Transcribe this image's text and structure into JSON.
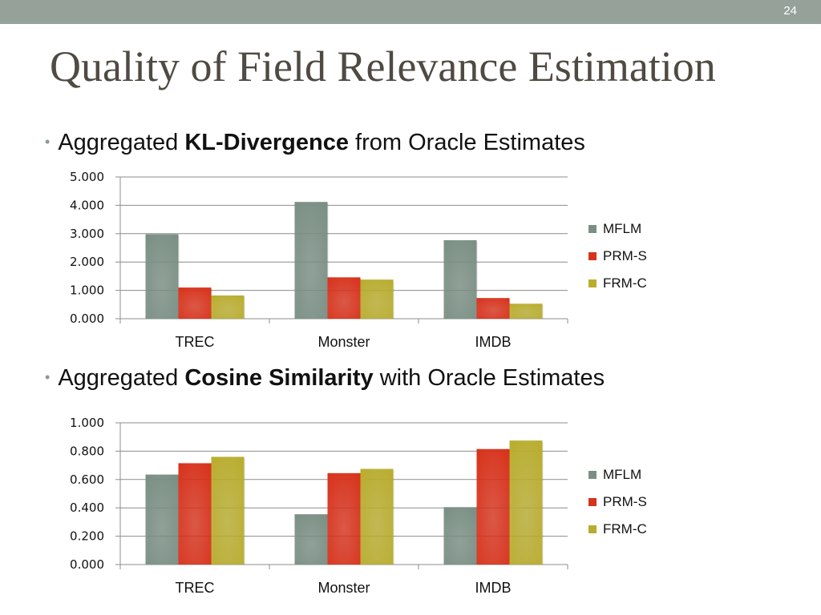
{
  "slide": {
    "number": "24",
    "title": "Quality of Field Relevance Estimation"
  },
  "bullets": [
    {
      "prefix": "Aggregated ",
      "bold": "KL-Divergence",
      "suffix": " from Oracle Estimates"
    },
    {
      "prefix": "Aggregated ",
      "bold": "Cosine Similarity",
      "suffix": " with Oracle Estimates"
    }
  ],
  "colors": {
    "MFLM": "#7a8f84",
    "PRM-S": "#d8321b",
    "FRM-C": "#b9ad2e",
    "topbar": "#95a199",
    "title": "#4f4a42"
  },
  "chart_data": [
    {
      "type": "bar",
      "categories": [
        "TREC",
        "Monster",
        "IMDB"
      ],
      "series": [
        {
          "name": "MFLM",
          "values": [
            2.98,
            4.12,
            2.77
          ]
        },
        {
          "name": "PRM-S",
          "values": [
            1.1,
            1.46,
            0.73
          ]
        },
        {
          "name": "FRM-C",
          "values": [
            0.82,
            1.38,
            0.53
          ]
        }
      ],
      "yticks": [
        "0.000",
        "1.000",
        "2.000",
        "3.000",
        "4.000",
        "5.000"
      ],
      "ylim": [
        0,
        5
      ],
      "grid": true,
      "legend": "right"
    },
    {
      "type": "bar",
      "categories": [
        "TREC",
        "Monster",
        "IMDB"
      ],
      "series": [
        {
          "name": "MFLM",
          "values": [
            0.635,
            0.355,
            0.405
          ]
        },
        {
          "name": "PRM-S",
          "values": [
            0.715,
            0.645,
            0.815
          ]
        },
        {
          "name": "FRM-C",
          "values": [
            0.76,
            0.675,
            0.875
          ]
        }
      ],
      "yticks": [
        "0.000",
        "0.200",
        "0.400",
        "0.600",
        "0.800",
        "1.000"
      ],
      "ylim": [
        0,
        1
      ],
      "grid": true,
      "legend": "right"
    }
  ]
}
